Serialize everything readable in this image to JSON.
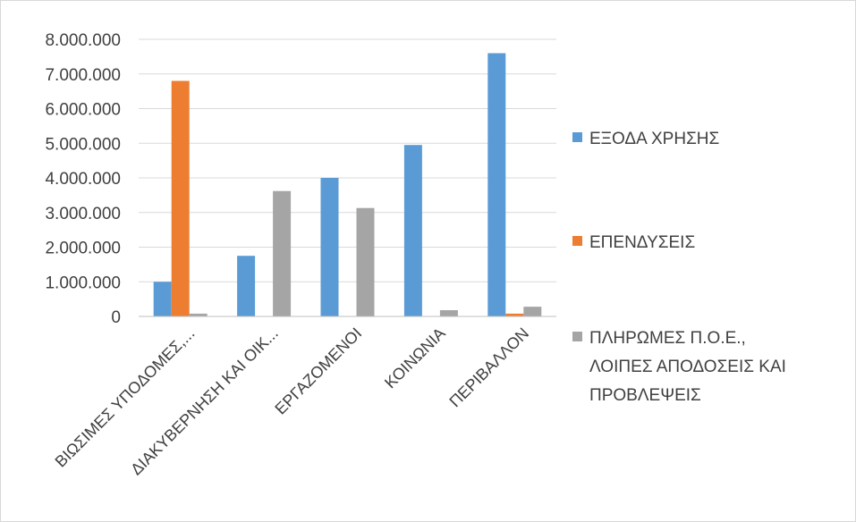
{
  "chart_data": {
    "type": "bar",
    "categories": [
      "ΒΙΩΣΙΜΕΣ ΥΠΟΔΟΜΕΣ,...",
      "ΔΙΑΚΥΒΕΡΝΗΣΗ ΚΑΙ ΟΙΚ...",
      "ΕΡΓΑΖΟΜΕΝΟΙ",
      "ΚΟΙΝΩΝΙΑ",
      "ΠΕΡΙΒΑΛΛΟΝ"
    ],
    "series": [
      {
        "name": "ΕΞΟΔΑ ΧΡΗΣΗΣ",
        "color": "#5b9bd5",
        "values": [
          1000000,
          1750000,
          4000000,
          4950000,
          7600000
        ]
      },
      {
        "name": "ΕΠΕΝΔΥΣΕΙΣ",
        "color": "#ed7d31",
        "values": [
          6800000,
          0,
          0,
          0,
          80000
        ]
      },
      {
        "name": "ΠΛΗΡΩΜΕΣ Π.Ο.Ε., ΛΟΙΠΕΣ ΑΠΟΔΟΣΕΙΣ ΚΑΙ ΠΡΟΒΛΕΨΕΙΣ",
        "color": "#a5a5a5",
        "values": [
          80000,
          3620000,
          3130000,
          180000,
          280000
        ]
      }
    ],
    "legend_lines": [
      [
        "ΕΞΟΔΑ ΧΡΗΣΗΣ"
      ],
      [
        "ΕΠΕΝΔΥΣΕΙΣ"
      ],
      [
        "ΠΛΗΡΩΜΕΣ Π.Ο.Ε.,",
        "ΛΟΙΠΕΣ ΑΠΟΔΟΣΕΙΣ ΚΑΙ",
        "ΠΡΟΒΛΕΨΕΙΣ"
      ]
    ],
    "ylim": [
      0,
      8000000
    ],
    "yticks": [
      0,
      1000000,
      2000000,
      3000000,
      4000000,
      5000000,
      6000000,
      7000000,
      8000000
    ],
    "ytick_labels": [
      "0",
      "1.000.000",
      "2.000.000",
      "3.000.000",
      "4.000.000",
      "5.000.000",
      "6.000.000",
      "7.000.000",
      "8.000.000"
    ],
    "grid": true,
    "legend_position": "right",
    "xlabel": "",
    "ylabel": ""
  }
}
